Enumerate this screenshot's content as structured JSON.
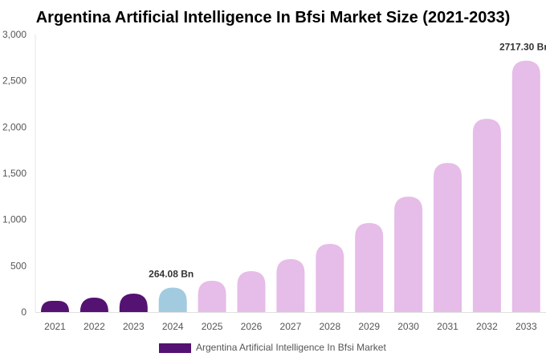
{
  "chart_data": {
    "type": "bar",
    "title": "Argentina Artificial Intelligence In Bfsi Market Size (2021-2033)",
    "categories": [
      "2021",
      "2022",
      "2023",
      "2024",
      "2025",
      "2026",
      "2027",
      "2028",
      "2029",
      "2030",
      "2031",
      "2032",
      "2033"
    ],
    "series": [
      {
        "name": "Argentina Artificial Intelligence In Bfsi Market",
        "values": [
          121,
          156,
          199,
          264.08,
          338,
          442,
          572,
          737,
          962,
          1248,
          1612,
          2089,
          2717.3
        ]
      }
    ],
    "bar_colors": [
      "#541272",
      "#541272",
      "#541272",
      "#a3cbe0",
      "#e6bce8",
      "#e6bce8",
      "#e6bce8",
      "#e6bce8",
      "#e6bce8",
      "#e6bce8",
      "#e6bce8",
      "#e6bce8",
      "#e6bce8"
    ],
    "data_labels": [
      {
        "category": "2024",
        "text": "264.08 Bn"
      },
      {
        "category": "2033",
        "text": "2717.30 Bn"
      }
    ],
    "ylim": [
      0,
      3000
    ],
    "yticks": [
      0,
      500,
      1000,
      1500,
      2000,
      2500,
      3000
    ],
    "ytick_labels": [
      "0",
      "500",
      "1,000",
      "1,500",
      "2,000",
      "2,500",
      "3,000"
    ],
    "xlabel": "",
    "ylabel": "",
    "grid": false,
    "legend": {
      "position": "bottom",
      "label": "Argentina Artificial Intelligence In Bfsi Market",
      "color": "#541272"
    }
  }
}
